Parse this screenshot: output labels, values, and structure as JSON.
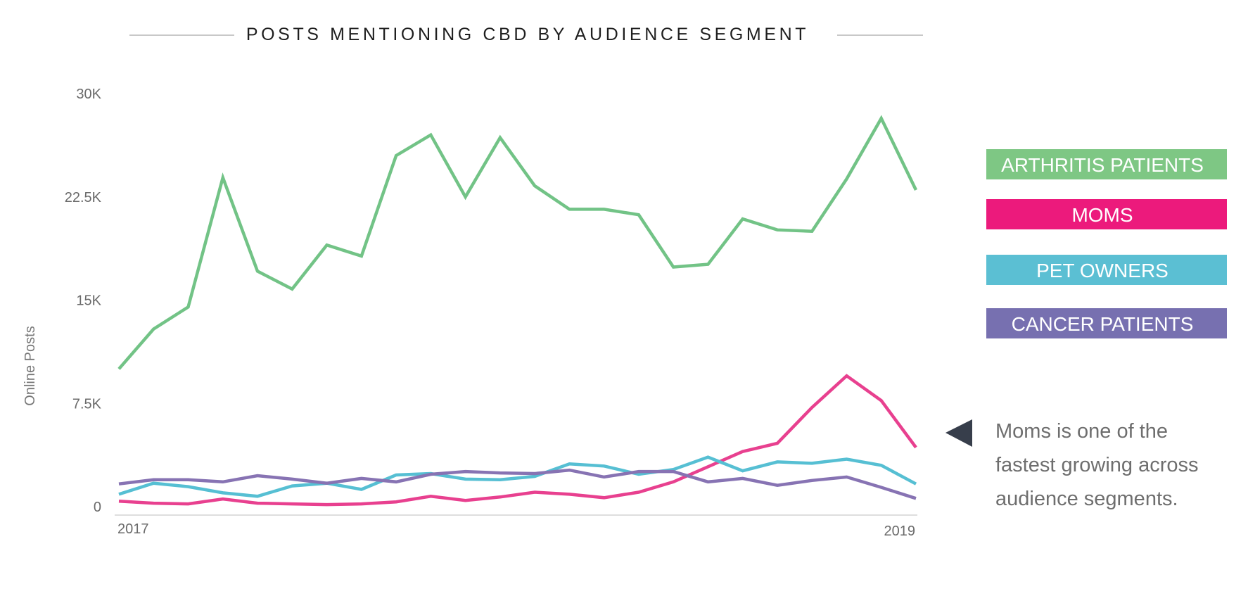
{
  "chart_data": {
    "type": "line",
    "title": "POSTS MENTIONING CBD BY AUDIENCE SEGMENT",
    "ylabel": "Online Posts",
    "xlabel": "",
    "ylim": [
      0,
      30000
    ],
    "yticks": [
      {
        "value": 0,
        "label": "0"
      },
      {
        "value": 7500,
        "label": "7.5K"
      },
      {
        "value": 15000,
        "label": "15K"
      },
      {
        "value": 22500,
        "label": "22.5K"
      },
      {
        "value": 30000,
        "label": "30K"
      }
    ],
    "x_tick_labels": {
      "start": "2017",
      "end": "2019"
    },
    "points": 24,
    "series": [
      {
        "name": "ARTHRITIS PATIENTS",
        "color": "#72c386",
        "values": [
          10000,
          12900,
          14500,
          23900,
          17100,
          15800,
          19000,
          18200,
          25500,
          27000,
          22500,
          26800,
          23300,
          21600,
          21600,
          21200,
          17400,
          17600,
          20900,
          20100,
          20000,
          23800,
          28200,
          23000
        ]
      },
      {
        "name": "MOMS",
        "color": "#e8408f",
        "values": [
          400,
          250,
          200,
          550,
          250,
          200,
          150,
          200,
          350,
          750,
          450,
          700,
          1050,
          900,
          650,
          1050,
          1800,
          2900,
          4000,
          4600,
          7200,
          9500,
          7700,
          4300
        ]
      },
      {
        "name": "PET OWNERS",
        "color": "#56bfd3",
        "values": [
          900,
          1700,
          1450,
          1000,
          750,
          1500,
          1700,
          1250,
          2300,
          2400,
          2000,
          1950,
          2200,
          3100,
          2950,
          2350,
          2700,
          3600,
          2600,
          3250,
          3150,
          3450,
          3000,
          1650
        ]
      },
      {
        "name": "CANCER PATIENTS",
        "color": "#8773b3",
        "values": [
          1650,
          1950,
          1950,
          1800,
          2250,
          2000,
          1700,
          2050,
          1800,
          2350,
          2550,
          2450,
          2400,
          2650,
          2150,
          2550,
          2550,
          1800,
          2050,
          1550,
          1900,
          2150,
          1400,
          600
        ]
      }
    ],
    "legend": [
      {
        "label": "ARTHRITIS PATIENTS",
        "color": "#7ec784"
      },
      {
        "label": "MOMS",
        "color": "#ec1a7c"
      },
      {
        "label": "PET OWNERS",
        "color": "#5bbfd3"
      },
      {
        "label": "CANCER PATIENTS",
        "color": "#7770b0"
      }
    ],
    "legend_position": "right",
    "annotation": {
      "lines": [
        "Moms is one of the",
        "fastest growing across",
        "audience segments."
      ],
      "pointer_color": "#373e4b"
    },
    "grid": false
  }
}
